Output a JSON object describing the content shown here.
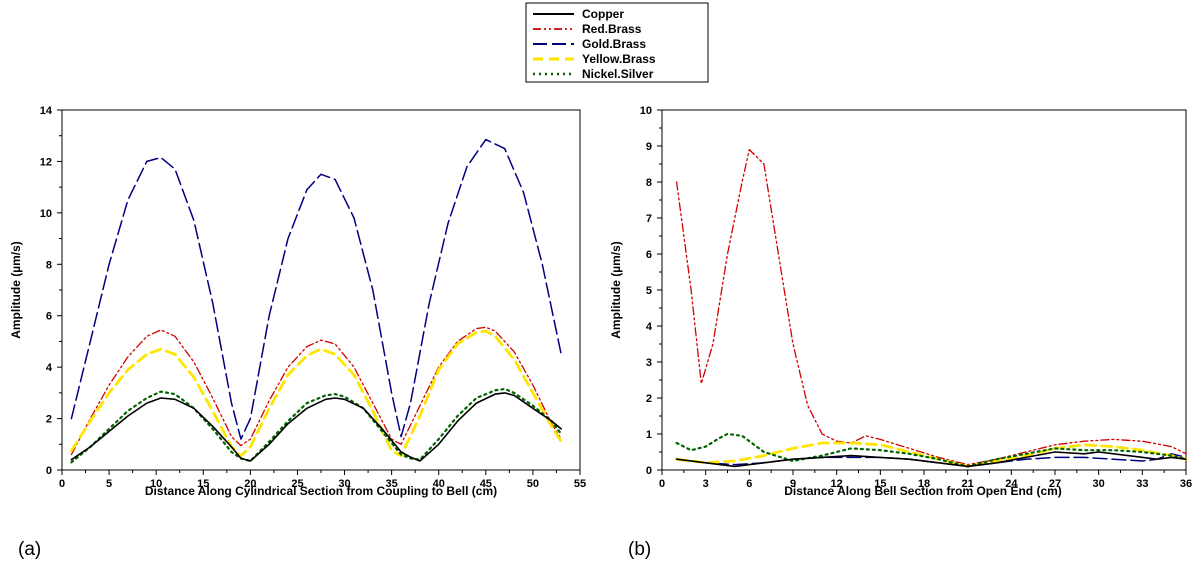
{
  "legend": {
    "placement": "top-center",
    "entries": [
      {
        "name": "Copper",
        "color": "#000000",
        "dash": "solid"
      },
      {
        "name": "Red.Brass",
        "color": "#d40000",
        "dash": "dash-dot-dot"
      },
      {
        "name": "Gold.Brass",
        "color": "#000080",
        "dash": "long-dash"
      },
      {
        "name": "Yellow.Brass",
        "color": "#ffe600",
        "dash": "dash"
      },
      {
        "name": "Nickel.Silver",
        "color": "#006400",
        "dash": "dotted"
      }
    ]
  },
  "chart_data": [
    {
      "type": "line",
      "panel_label": "(a)",
      "xlabel": "Distance Along Cylindrical Section from Coupling to Bell (cm)",
      "ylabel": "Amplitude (µm/s)",
      "xlim": [
        0,
        55
      ],
      "ylim": [
        0,
        14
      ],
      "xticks": [
        0,
        5,
        10,
        15,
        20,
        25,
        30,
        35,
        40,
        45,
        50,
        55
      ],
      "yticks": [
        0,
        2,
        4,
        6,
        8,
        10,
        12,
        14
      ],
      "grid": false,
      "series": [
        {
          "name": "Copper",
          "x": [
            1,
            3,
            5,
            7,
            9,
            10.5,
            12,
            14,
            16,
            18,
            19,
            20,
            22,
            24,
            26,
            28,
            29,
            30,
            32,
            34,
            36,
            37,
            38,
            40,
            42,
            44,
            46,
            47,
            48,
            50,
            52,
            53
          ],
          "y": [
            0.4,
            0.9,
            1.5,
            2.1,
            2.6,
            2.8,
            2.75,
            2.4,
            1.7,
            0.9,
            0.45,
            0.35,
            1.0,
            1.8,
            2.4,
            2.75,
            2.8,
            2.75,
            2.4,
            1.6,
            0.7,
            0.5,
            0.35,
            1.0,
            1.9,
            2.6,
            2.95,
            3.0,
            2.9,
            2.4,
            1.9,
            1.6
          ]
        },
        {
          "name": "Red.Brass",
          "x": [
            1,
            3,
            5,
            7,
            9,
            10.5,
            12,
            14,
            16,
            18,
            19,
            20,
            22,
            24,
            26,
            27.5,
            29,
            31,
            33,
            35,
            36,
            38,
            40,
            42,
            44,
            45,
            46,
            48,
            50,
            52,
            53
          ],
          "y": [
            0.6,
            2.0,
            3.3,
            4.4,
            5.2,
            5.45,
            5.2,
            4.2,
            2.8,
            1.3,
            0.95,
            1.2,
            2.7,
            4.0,
            4.8,
            5.05,
            4.9,
            4.0,
            2.6,
            1.2,
            1.0,
            2.5,
            4.0,
            5.0,
            5.5,
            5.55,
            5.4,
            4.6,
            3.3,
            1.8,
            1.2
          ]
        },
        {
          "name": "Gold.Brass",
          "x": [
            1,
            3,
            5,
            7,
            9,
            10.5,
            12,
            14,
            16,
            18,
            19,
            20,
            22,
            24,
            26,
            27.5,
            29,
            31,
            33,
            35,
            36,
            37,
            39,
            41,
            43,
            45,
            47,
            49,
            51,
            53
          ],
          "y": [
            2.0,
            5.0,
            8.0,
            10.5,
            12.0,
            12.15,
            11.7,
            9.7,
            6.5,
            2.6,
            1.2,
            2.0,
            6.0,
            9.0,
            10.9,
            11.5,
            11.3,
            9.8,
            7.0,
            3.0,
            1.3,
            2.6,
            6.5,
            9.6,
            11.8,
            12.85,
            12.5,
            10.8,
            8.0,
            4.5
          ]
        },
        {
          "name": "Yellow.Brass",
          "x": [
            1,
            3,
            5,
            7,
            9,
            10.5,
            12,
            14,
            16,
            18,
            19,
            20,
            22,
            24,
            26,
            27.5,
            29,
            31,
            33,
            35,
            36,
            38,
            40,
            42,
            44,
            45,
            46,
            48,
            50,
            52,
            53
          ],
          "y": [
            0.75,
            1.9,
            3.0,
            3.9,
            4.5,
            4.7,
            4.5,
            3.6,
            2.3,
            0.9,
            0.55,
            0.9,
            2.4,
            3.7,
            4.45,
            4.7,
            4.5,
            3.7,
            2.3,
            0.75,
            0.55,
            2.1,
            3.9,
            4.9,
            5.35,
            5.4,
            5.2,
            4.3,
            3.0,
            1.7,
            1.1
          ]
        },
        {
          "name": "Nickel.Silver",
          "x": [
            1,
            3,
            5,
            7,
            9,
            10.5,
            12,
            14,
            16,
            18,
            19,
            20,
            22,
            24,
            26,
            28,
            29,
            30,
            32,
            34,
            36,
            37,
            38,
            40,
            42,
            44,
            46,
            47,
            48,
            50,
            52,
            53
          ],
          "y": [
            0.3,
            0.9,
            1.6,
            2.3,
            2.8,
            3.05,
            2.95,
            2.4,
            1.6,
            0.7,
            0.45,
            0.35,
            1.1,
            1.9,
            2.6,
            2.9,
            2.95,
            2.85,
            2.4,
            1.5,
            0.6,
            0.45,
            0.4,
            1.2,
            2.1,
            2.8,
            3.1,
            3.15,
            3.0,
            2.5,
            1.9,
            1.4
          ]
        }
      ]
    },
    {
      "type": "line",
      "panel_label": "(b)",
      "xlabel": "Distance Along Bell Section from Open End (cm)",
      "ylabel": "Amplitude (µm/s)",
      "xlim": [
        0,
        36
      ],
      "ylim": [
        0,
        10
      ],
      "xticks": [
        0,
        3,
        6,
        9,
        12,
        15,
        18,
        21,
        24,
        27,
        30,
        33,
        36
      ],
      "yticks": [
        0,
        1,
        2,
        3,
        4,
        5,
        6,
        7,
        8,
        9,
        10
      ],
      "grid": false,
      "series": [
        {
          "name": "Copper",
          "x": [
            1,
            3,
            5,
            7,
            9,
            11,
            13,
            15,
            17,
            19,
            21,
            23,
            25,
            27,
            29,
            30,
            32,
            34,
            35,
            36
          ],
          "y": [
            0.3,
            0.2,
            0.1,
            0.2,
            0.3,
            0.35,
            0.4,
            0.35,
            0.3,
            0.2,
            0.1,
            0.2,
            0.35,
            0.5,
            0.45,
            0.5,
            0.4,
            0.3,
            0.35,
            0.3
          ]
        },
        {
          "name": "Red.Brass",
          "x": [
            1,
            2,
            2.7,
            3.5,
            4.5,
            5.5,
            6,
            7,
            8,
            9,
            10,
            11,
            12,
            13,
            14,
            15,
            17,
            19,
            21,
            23,
            25,
            27,
            29,
            31,
            33,
            35,
            36
          ],
          "y": [
            8.0,
            5.0,
            2.4,
            3.5,
            6.0,
            8.0,
            8.9,
            8.5,
            6.0,
            3.5,
            1.8,
            1.0,
            0.8,
            0.75,
            0.95,
            0.85,
            0.6,
            0.35,
            0.15,
            0.3,
            0.5,
            0.7,
            0.8,
            0.85,
            0.8,
            0.65,
            0.45
          ]
        },
        {
          "name": "Gold.Brass",
          "x": [
            1,
            3,
            5,
            7,
            9,
            11,
            13,
            15,
            17,
            19,
            21,
            23,
            25,
            27,
            29,
            31,
            33,
            34,
            35,
            36
          ],
          "y": [
            0.3,
            0.2,
            0.15,
            0.2,
            0.3,
            0.35,
            0.35,
            0.35,
            0.3,
            0.2,
            0.1,
            0.2,
            0.3,
            0.35,
            0.35,
            0.3,
            0.25,
            0.3,
            0.45,
            0.35
          ]
        },
        {
          "name": "Yellow.Brass",
          "x": [
            1,
            3,
            5,
            7,
            9,
            11,
            13,
            15,
            17,
            19,
            21,
            23,
            25,
            27,
            29,
            31,
            33,
            35,
            36
          ],
          "y": [
            0.3,
            0.2,
            0.25,
            0.4,
            0.6,
            0.75,
            0.75,
            0.7,
            0.5,
            0.3,
            0.1,
            0.25,
            0.4,
            0.6,
            0.7,
            0.65,
            0.55,
            0.4,
            0.3
          ]
        },
        {
          "name": "Nickel.Silver",
          "x": [
            1,
            2,
            3,
            4,
            4.5,
            5.5,
            7,
            9,
            11,
            13,
            15,
            17,
            19,
            21,
            23,
            25,
            27,
            29,
            31,
            33,
            35,
            36
          ],
          "y": [
            0.75,
            0.55,
            0.65,
            0.9,
            1.0,
            0.95,
            0.5,
            0.25,
            0.4,
            0.6,
            0.55,
            0.45,
            0.3,
            0.1,
            0.3,
            0.45,
            0.6,
            0.55,
            0.55,
            0.5,
            0.4,
            0.3
          ]
        }
      ]
    }
  ]
}
